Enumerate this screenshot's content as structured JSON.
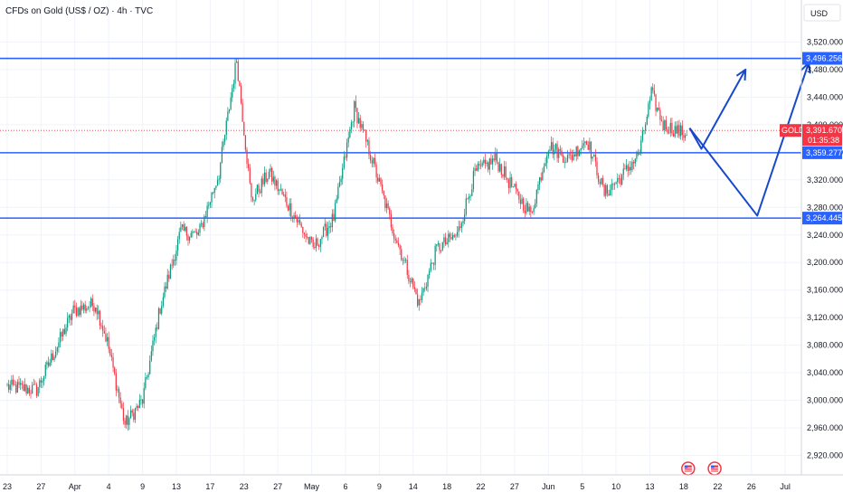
{
  "header": {
    "title": "CFDs on Gold (US$ / OZ) · 4h · TVC"
  },
  "axis": {
    "currency_label": "USD"
  },
  "chart_data": {
    "type": "candlestick",
    "title": "CFDs on Gold (US$ / OZ) · 4h · TVC",
    "ylim": [
      2905,
      3535
    ],
    "yticks": [
      "3,520.000",
      "3,480.000",
      "3,440.000",
      "3,400.000",
      "3,360.000",
      "3,320.000",
      "3,280.000",
      "3,240.000",
      "3,200.000",
      "3,160.000",
      "3,120.000",
      "3,080.000",
      "3,040.000",
      "3,000.000",
      "2,960.000",
      "2,920.000"
    ],
    "ytick_values": [
      3520,
      3480,
      3440,
      3400,
      3360,
      3320,
      3280,
      3240,
      3200,
      3160,
      3120,
      3080,
      3040,
      3000,
      2960,
      2920
    ],
    "xticks": [
      "23",
      "27",
      "Apr",
      "4",
      "9",
      "13",
      "17",
      "23",
      "27",
      "May",
      "6",
      "9",
      "14",
      "18",
      "22",
      "27",
      "Jun",
      "5",
      "10",
      "13",
      "18",
      "22",
      "26",
      "Jul"
    ],
    "xtick_bars": [
      0,
      23,
      46,
      69,
      92,
      115,
      138,
      161,
      184,
      207,
      230,
      253,
      276,
      299,
      322,
      345,
      368,
      391,
      414,
      437,
      460,
      483,
      506,
      529
    ],
    "bars_total": 540,
    "key_points": [
      {
        "bar": 0,
        "price": 3020
      },
      {
        "bar": 20,
        "price": 3015
      },
      {
        "bar": 45,
        "price": 3130
      },
      {
        "bar": 60,
        "price": 3140
      },
      {
        "bar": 68,
        "price": 3085
      },
      {
        "bar": 80,
        "price": 2965
      },
      {
        "bar": 92,
        "price": 3000
      },
      {
        "bar": 104,
        "price": 3135
      },
      {
        "bar": 118,
        "price": 3245
      },
      {
        "bar": 130,
        "price": 3240
      },
      {
        "bar": 144,
        "price": 3330
      },
      {
        "bar": 156,
        "price": 3495
      },
      {
        "bar": 166,
        "price": 3290
      },
      {
        "bar": 178,
        "price": 3330
      },
      {
        "bar": 192,
        "price": 3280
      },
      {
        "bar": 208,
        "price": 3220
      },
      {
        "bar": 222,
        "price": 3265
      },
      {
        "bar": 236,
        "price": 3425
      },
      {
        "bar": 248,
        "price": 3350
      },
      {
        "bar": 262,
        "price": 3250
      },
      {
        "bar": 280,
        "price": 3140
      },
      {
        "bar": 292,
        "price": 3220
      },
      {
        "bar": 306,
        "price": 3240
      },
      {
        "bar": 318,
        "price": 3330
      },
      {
        "bar": 332,
        "price": 3350
      },
      {
        "bar": 346,
        "price": 3300
      },
      {
        "bar": 356,
        "price": 3270
      },
      {
        "bar": 368,
        "price": 3370
      },
      {
        "bar": 382,
        "price": 3350
      },
      {
        "bar": 394,
        "price": 3380
      },
      {
        "bar": 406,
        "price": 3300
      },
      {
        "bar": 420,
        "price": 3330
      },
      {
        "bar": 430,
        "price": 3360
      },
      {
        "bar": 438,
        "price": 3445
      },
      {
        "bar": 446,
        "price": 3400
      },
      {
        "bar": 462,
        "price": 3385
      }
    ],
    "current_price": 3391.67,
    "instrument": "GOLD",
    "price_tag": "3,391.670",
    "countdown": "01:35:38",
    "levels": [
      {
        "price": 3496.256,
        "label": "3,496.256"
      },
      {
        "price": 3359.277,
        "label": "3,359.277"
      },
      {
        "price": 3264.445,
        "label": "3,264.445"
      }
    ],
    "projection": {
      "path1": [
        {
          "bar": 464,
          "price": 3395
        },
        {
          "bar": 472,
          "price": 3365
        },
        {
          "bar": 502,
          "price": 3480
        }
      ],
      "path2": [
        {
          "bar": 464,
          "price": 3395
        },
        {
          "bar": 510,
          "price": 3268
        },
        {
          "bar": 545,
          "price": 3490
        }
      ]
    },
    "event_markers": [
      {
        "bar": 463
      },
      {
        "bar": 481
      }
    ],
    "colors": {
      "up": "#089981",
      "down": "#f23645",
      "level": "#2962ff",
      "current": "#f23645",
      "grid": "#f0f3fa",
      "axis_text": "#131722"
    }
  }
}
